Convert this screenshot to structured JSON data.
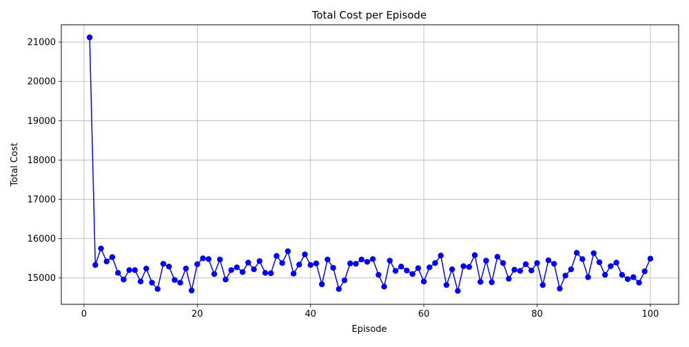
{
  "chart_data": {
    "type": "line",
    "title": "Total Cost per Episode",
    "xlabel": "Episode",
    "ylabel": "Total Cost",
    "xlim": [
      -4,
      105
    ],
    "ylim": [
      14330,
      21440
    ],
    "x_ticks": [
      0,
      20,
      40,
      60,
      80,
      100
    ],
    "y_ticks": [
      15000,
      16000,
      17000,
      18000,
      19000,
      20000,
      21000
    ],
    "grid": true,
    "legend": "none",
    "series": [
      {
        "color": "#0000ff",
        "marker": "circle",
        "x": [
          1,
          2,
          3,
          4,
          5,
          6,
          7,
          8,
          9,
          10,
          11,
          12,
          13,
          14,
          15,
          16,
          17,
          18,
          19,
          20,
          21,
          22,
          23,
          24,
          25,
          26,
          27,
          28,
          29,
          30,
          31,
          32,
          33,
          34,
          35,
          36,
          37,
          38,
          39,
          40,
          41,
          42,
          43,
          44,
          45,
          46,
          47,
          48,
          49,
          50,
          51,
          52,
          53,
          54,
          55,
          56,
          57,
          58,
          59,
          60,
          61,
          62,
          63,
          64,
          65,
          66,
          67,
          68,
          69,
          70,
          71,
          72,
          73,
          74,
          75,
          76,
          77,
          78,
          79,
          80,
          81,
          82,
          83,
          84,
          85,
          86,
          87,
          88,
          89,
          90,
          91,
          92,
          93,
          94,
          95,
          96,
          97,
          98,
          99,
          100
        ],
        "y": [
          21120,
          15330,
          15750,
          15420,
          15530,
          15130,
          14960,
          15200,
          15200,
          14910,
          15240,
          14880,
          14720,
          15360,
          15290,
          14950,
          14880,
          15240,
          14680,
          15350,
          15500,
          15480,
          15100,
          15470,
          14960,
          15200,
          15270,
          15150,
          15390,
          15220,
          15430,
          15130,
          15120,
          15560,
          15380,
          15680,
          15110,
          15340,
          15600,
          15330,
          15370,
          14840,
          15470,
          15260,
          14720,
          14940,
          15370,
          15360,
          15470,
          15410,
          15480,
          15080,
          14780,
          15440,
          15180,
          15290,
          15190,
          15100,
          15250,
          14910,
          15270,
          15380,
          15570,
          14820,
          15220,
          14670,
          15300,
          15280,
          15580,
          14900,
          15440,
          14890,
          15540,
          15380,
          14980,
          15210,
          15180,
          15350,
          15190,
          15380,
          14820,
          15450,
          15360,
          14730,
          15060,
          15220,
          15640,
          15480,
          15020,
          15630,
          15400,
          15080,
          15300,
          15390,
          15080,
          14970,
          15020,
          14880,
          15170,
          15490
        ]
      }
    ]
  }
}
